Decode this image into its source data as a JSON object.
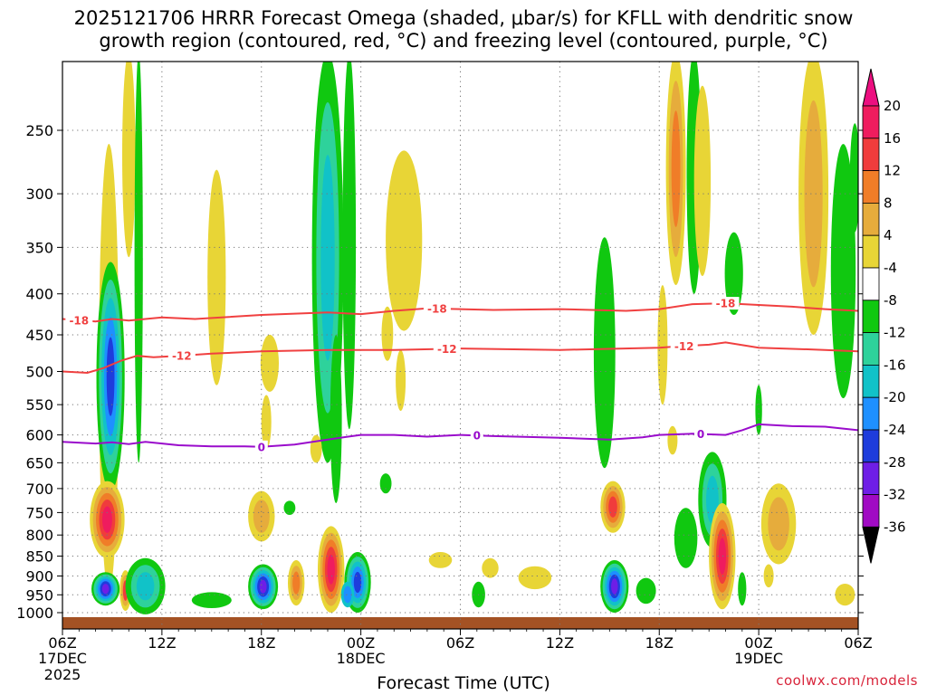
{
  "chart_data": {
    "type": "heatmap",
    "title_line1": "2025121706 HRRR Forecast Omega (shaded, μbar/s) for KFLL with dendritic snow",
    "title_line2": "growth region (contoured, red, °C) and freezing level (contoured, purple, °C)",
    "xlabel": "Forecast Time (UTC)",
    "credit": "coolwx.com/models",
    "x_range_hours": [
      0,
      48
    ],
    "y_range_hpa": [
      1025,
      200
    ],
    "y_ticks": [
      250,
      300,
      350,
      400,
      450,
      500,
      550,
      600,
      650,
      700,
      750,
      800,
      850,
      900,
      950,
      1000
    ],
    "x_ticks": [
      {
        "hour": 0,
        "label": "06Z",
        "sub1": "17DEC",
        "sub2": "2025"
      },
      {
        "hour": 6,
        "label": "12Z",
        "sub1": "",
        "sub2": ""
      },
      {
        "hour": 12,
        "label": "18Z",
        "sub1": "",
        "sub2": ""
      },
      {
        "hour": 18,
        "label": "00Z",
        "sub1": "18DEC",
        "sub2": ""
      },
      {
        "hour": 24,
        "label": "06Z",
        "sub1": "",
        "sub2": ""
      },
      {
        "hour": 30,
        "label": "12Z",
        "sub1": "",
        "sub2": ""
      },
      {
        "hour": 36,
        "label": "18Z",
        "sub1": "",
        "sub2": ""
      },
      {
        "hour": 42,
        "label": "00Z",
        "sub1": "19DEC",
        "sub2": ""
      },
      {
        "hour": 48,
        "label": "06Z",
        "sub1": "",
        "sub2": ""
      }
    ],
    "colorbar": {
      "labels": [
        "20",
        "16",
        "12",
        "8",
        "4",
        "-4",
        "-8",
        "-12",
        "-16",
        "-20",
        "-24",
        "-28",
        "-32",
        "-36"
      ],
      "colors": [
        "#ef1c5e",
        "#f03c3c",
        "#f07d28",
        "#e6ac3c",
        "#e8d536",
        "#ffffff",
        "#10c810",
        "#2ed29b",
        "#11c2c8",
        "#1e90ff",
        "#1e3cdc",
        "#6e1ee6",
        "#a00ac3",
        "#a8a8a8"
      ],
      "top_color": "#ec0f80",
      "bottom_color": "#000000"
    },
    "omega_features": [
      {
        "t": 2.8,
        "p": 600,
        "rt": 0.6,
        "rp": 340,
        "lvl": [
          4
        ]
      },
      {
        "t": 4.0,
        "p": 250,
        "rt": 0.4,
        "rp": 110,
        "lvl": [
          4
        ]
      },
      {
        "t": 4.6,
        "p": 410,
        "rt": 0.25,
        "rp": 240,
        "lvl": [
          -4
        ]
      },
      {
        "t": 2.9,
        "p": 535,
        "rt": 0.85,
        "rp": 170,
        "lvl": [
          -4,
          -8,
          -12,
          -16,
          -20
        ]
      },
      {
        "t": 2.7,
        "p": 770,
        "rt": 1.05,
        "rp": 85,
        "lvl": [
          4,
          8,
          12,
          16,
          20
        ]
      },
      {
        "t": 2.6,
        "p": 935,
        "rt": 0.85,
        "rp": 45,
        "lvl": [
          -4,
          -8,
          -12,
          -16,
          -20,
          -24
        ]
      },
      {
        "t": 3.8,
        "p": 940,
        "rt": 0.35,
        "rp": 55,
        "lvl": [
          4,
          8,
          16
        ]
      },
      {
        "t": 5.0,
        "p": 930,
        "rt": 1.2,
        "rp": 75,
        "lvl": [
          -4,
          -8,
          -12
        ]
      },
      {
        "t": 9.3,
        "p": 400,
        "rt": 0.55,
        "rp": 120,
        "lvl": [
          4
        ]
      },
      {
        "t": 9.0,
        "p": 965,
        "rt": 1.2,
        "rp": 22,
        "lvl": [
          -4
        ]
      },
      {
        "t": 12.3,
        "p": 580,
        "rt": 0.3,
        "rp": 45,
        "lvl": [
          4
        ]
      },
      {
        "t": 12.5,
        "p": 490,
        "rt": 0.55,
        "rp": 40,
        "lvl": [
          4
        ]
      },
      {
        "t": 12.0,
        "p": 760,
        "rt": 0.8,
        "rp": 55,
        "lvl": [
          4,
          8
        ]
      },
      {
        "t": 12.1,
        "p": 930,
        "rt": 0.9,
        "rp": 60,
        "lvl": [
          -4,
          -8,
          -12,
          -16,
          -20,
          -24
        ]
      },
      {
        "t": 14.1,
        "p": 920,
        "rt": 0.5,
        "rp": 60,
        "lvl": [
          4,
          8,
          12
        ]
      },
      {
        "t": 13.7,
        "p": 740,
        "rt": 0.35,
        "rp": 15,
        "lvl": [
          -4
        ]
      },
      {
        "t": 16.0,
        "p": 410,
        "rt": 0.95,
        "rp": 240,
        "lvl": [
          -4,
          -8,
          -12
        ]
      },
      {
        "t": 17.3,
        "p": 370,
        "rt": 0.4,
        "rp": 220,
        "lvl": [
          -4
        ]
      },
      {
        "t": 16.2,
        "p": 890,
        "rt": 0.8,
        "rp": 110,
        "lvl": [
          4,
          8,
          12,
          16,
          20
        ]
      },
      {
        "t": 16.5,
        "p": 590,
        "rt": 0.35,
        "rp": 140,
        "lvl": [
          -4
        ]
      },
      {
        "t": 15.3,
        "p": 625,
        "rt": 0.35,
        "rp": 25,
        "lvl": [
          4
        ]
      },
      {
        "t": 17.8,
        "p": 920,
        "rt": 0.8,
        "rp": 80,
        "lvl": [
          -4,
          -8,
          -12,
          -16,
          -20
        ]
      },
      {
        "t": 17.2,
        "p": 950,
        "rt": 0.4,
        "rp": 35,
        "lvl": [
          -12,
          -16
        ]
      },
      {
        "t": 20.6,
        "p": 355,
        "rt": 1.1,
        "rp": 90,
        "lvl": [
          4
        ]
      },
      {
        "t": 19.6,
        "p": 450,
        "rt": 0.35,
        "rp": 35,
        "lvl": [
          4
        ]
      },
      {
        "t": 20.4,
        "p": 515,
        "rt": 0.3,
        "rp": 45,
        "lvl": [
          4
        ]
      },
      {
        "t": 19.5,
        "p": 690,
        "rt": 0.35,
        "rp": 20,
        "lvl": [
          -4
        ]
      },
      {
        "t": 22.8,
        "p": 860,
        "rt": 0.7,
        "rp": 20,
        "lvl": [
          4
        ]
      },
      {
        "t": 25.1,
        "p": 950,
        "rt": 0.4,
        "rp": 35,
        "lvl": [
          -4
        ]
      },
      {
        "t": 25.8,
        "p": 880,
        "rt": 0.5,
        "rp": 25,
        "lvl": [
          4
        ]
      },
      {
        "t": 28.5,
        "p": 905,
        "rt": 1.0,
        "rp": 30,
        "lvl": [
          4
        ]
      },
      {
        "t": 32.7,
        "p": 500,
        "rt": 0.65,
        "rp": 160,
        "lvl": [
          -4
        ]
      },
      {
        "t": 33.2,
        "p": 740,
        "rt": 0.75,
        "rp": 55,
        "lvl": [
          4,
          8,
          12,
          16
        ]
      },
      {
        "t": 33.3,
        "p": 930,
        "rt": 0.85,
        "rp": 70,
        "lvl": [
          -4,
          -8,
          -12,
          -16,
          -20,
          -24
        ]
      },
      {
        "t": 35.2,
        "p": 940,
        "rt": 0.6,
        "rp": 35,
        "lvl": [
          -4
        ]
      },
      {
        "t": 36.2,
        "p": 470,
        "rt": 0.3,
        "rp": 80,
        "lvl": [
          4
        ]
      },
      {
        "t": 37.0,
        "p": 270,
        "rt": 0.6,
        "rp": 120,
        "lvl": [
          4,
          8,
          12
        ]
      },
      {
        "t": 38.1,
        "p": 260,
        "rt": 0.45,
        "rp": 140,
        "lvl": [
          -4
        ]
      },
      {
        "t": 38.6,
        "p": 300,
        "rt": 0.5,
        "rp": 80,
        "lvl": [
          4
        ]
      },
      {
        "t": 36.8,
        "p": 610,
        "rt": 0.3,
        "rp": 25,
        "lvl": [
          4
        ]
      },
      {
        "t": 39.2,
        "p": 730,
        "rt": 0.85,
        "rp": 100,
        "lvl": [
          -4,
          -8,
          -12
        ]
      },
      {
        "t": 37.6,
        "p": 810,
        "rt": 0.7,
        "rp": 70,
        "lvl": [
          -4
        ]
      },
      {
        "t": 39.8,
        "p": 860,
        "rt": 0.8,
        "rp": 130,
        "lvl": [
          4,
          8,
          12,
          16,
          20
        ]
      },
      {
        "t": 40.5,
        "p": 380,
        "rt": 0.55,
        "rp": 45,
        "lvl": [
          -4
        ]
      },
      {
        "t": 42.0,
        "p": 560,
        "rt": 0.2,
        "rp": 40,
        "lvl": [
          -4
        ]
      },
      {
        "t": 41.0,
        "p": 935,
        "rt": 0.25,
        "rp": 45,
        "lvl": [
          -4
        ]
      },
      {
        "t": 43.2,
        "p": 780,
        "rt": 1.05,
        "rp": 90,
        "lvl": [
          4,
          8
        ]
      },
      {
        "t": 42.6,
        "p": 900,
        "rt": 0.3,
        "rp": 30,
        "lvl": [
          4
        ]
      },
      {
        "t": 45.3,
        "p": 310,
        "rt": 0.9,
        "rp": 140,
        "lvl": [
          4,
          8
        ]
      },
      {
        "t": 47.1,
        "p": 400,
        "rt": 0.75,
        "rp": 140,
        "lvl": [
          -4
        ]
      },
      {
        "t": 47.8,
        "p": 290,
        "rt": 0.3,
        "rp": 45,
        "lvl": [
          -4
        ]
      },
      {
        "t": 47.2,
        "p": 950,
        "rt": 0.6,
        "rp": 30,
        "lvl": [
          4
        ]
      }
    ],
    "contours": [
      {
        "label": "-18",
        "color": "#f04040",
        "label_at_hours": [
          1.0,
          22.6,
          40.0
        ],
        "points": [
          [
            0,
            430
          ],
          [
            2,
            433
          ],
          [
            3,
            430
          ],
          [
            4,
            432
          ],
          [
            6,
            428
          ],
          [
            8,
            430
          ],
          [
            12,
            425
          ],
          [
            16,
            422
          ],
          [
            18,
            424
          ],
          [
            20,
            420
          ],
          [
            22,
            417
          ],
          [
            26,
            419
          ],
          [
            30,
            418
          ],
          [
            34,
            420
          ],
          [
            36,
            418
          ],
          [
            38,
            412
          ],
          [
            40,
            411
          ],
          [
            44,
            415
          ],
          [
            46,
            418
          ],
          [
            48,
            420
          ]
        ]
      },
      {
        "label": "-12",
        "color": "#f04040",
        "label_at_hours": [
          7.2,
          23.2,
          37.5
        ],
        "points": [
          [
            0,
            500
          ],
          [
            1.5,
            502
          ],
          [
            2.5,
            495
          ],
          [
            3.5,
            485
          ],
          [
            4.5,
            478
          ],
          [
            5.5,
            480
          ],
          [
            7,
            478
          ],
          [
            9,
            475
          ],
          [
            12,
            472
          ],
          [
            16,
            470
          ],
          [
            20,
            470
          ],
          [
            24,
            468
          ],
          [
            30,
            470
          ],
          [
            36,
            467
          ],
          [
            37.2,
            465
          ],
          [
            39,
            463
          ],
          [
            40,
            460
          ],
          [
            42,
            467
          ],
          [
            46,
            470
          ],
          [
            48,
            472
          ]
        ]
      },
      {
        "label": "0",
        "color": "#9a0ccc",
        "label_at_hours": [
          12.0,
          25.0,
          38.5
        ],
        "points": [
          [
            0,
            612
          ],
          [
            2,
            615
          ],
          [
            3,
            613
          ],
          [
            4,
            616
          ],
          [
            5,
            612
          ],
          [
            7,
            618
          ],
          [
            9,
            620
          ],
          [
            11,
            620
          ],
          [
            12,
            621
          ],
          [
            14,
            617
          ],
          [
            16,
            608
          ],
          [
            18,
            600
          ],
          [
            20,
            600
          ],
          [
            22,
            603
          ],
          [
            24,
            600
          ],
          [
            26,
            602
          ],
          [
            30,
            605
          ],
          [
            33,
            608
          ],
          [
            35,
            604
          ],
          [
            36,
            600
          ],
          [
            38,
            598
          ],
          [
            40,
            600
          ],
          [
            41,
            592
          ],
          [
            42,
            582
          ],
          [
            44,
            585
          ],
          [
            46,
            586
          ],
          [
            48,
            592
          ]
        ]
      }
    ],
    "ground_color": "#a45224"
  }
}
